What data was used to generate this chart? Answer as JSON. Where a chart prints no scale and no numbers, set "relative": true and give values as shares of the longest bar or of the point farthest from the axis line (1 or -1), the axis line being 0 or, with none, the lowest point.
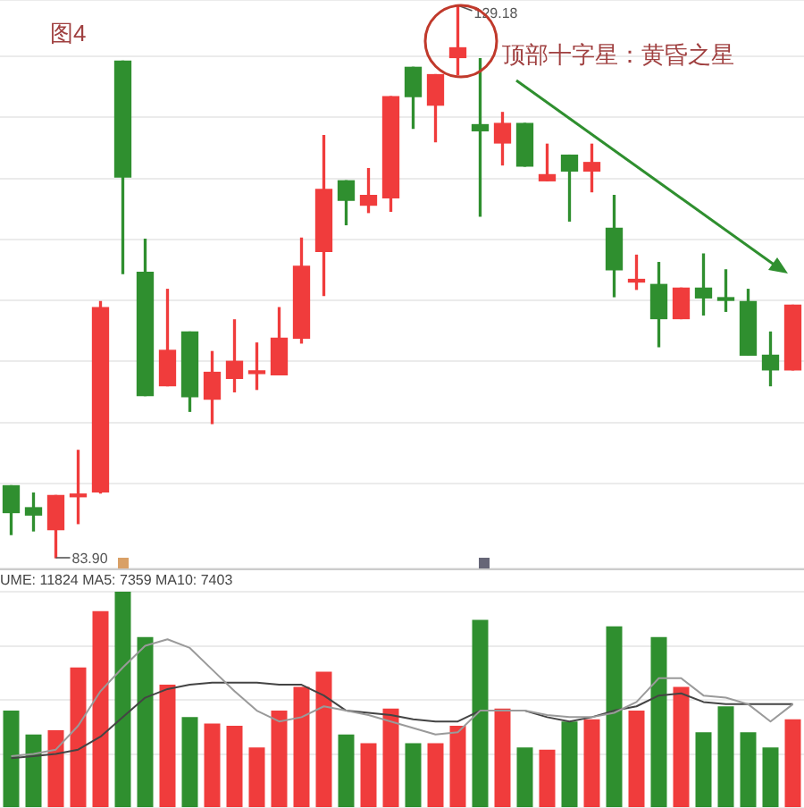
{
  "chart_data": [
    {
      "type": "candlestick",
      "title": "图4",
      "annotations": [
        "顶部十字星：黄昏之星",
        "129.18",
        "83.90"
      ],
      "categories": [
        null,
        null,
        null,
        null,
        null,
        null,
        null,
        null,
        null,
        null,
        null,
        null,
        null,
        null,
        null,
        null,
        null,
        null,
        null,
        null,
        null,
        null,
        null,
        null,
        null,
        null,
        null,
        null,
        null,
        null,
        null,
        null,
        null,
        null,
        null,
        null
      ],
      "ohlc": [
        [
          89.8,
          89.8,
          85.8,
          87.6
        ],
        [
          88.0,
          89.2,
          86.1,
          87.4
        ],
        [
          86.2,
          89.0,
          83.9,
          89.0
        ],
        [
          88.9,
          92.7,
          86.7,
          89.0
        ],
        [
          89.3,
          104.9,
          89.2,
          104.4
        ],
        [
          124.6,
          124.6,
          107.2,
          115.1
        ],
        [
          107.3,
          110.0,
          97.2,
          97.2
        ],
        [
          98.0,
          105.9,
          98.0,
          100.9
        ],
        [
          102.4,
          102.4,
          95.9,
          97.1
        ],
        [
          96.9,
          100.8,
          94.9,
          99.1
        ],
        [
          98.6,
          103.4,
          97.5,
          100.0
        ],
        [
          99.0,
          101.5,
          97.7,
          99.1
        ],
        [
          98.9,
          104.4,
          98.9,
          101.9
        ],
        [
          101.9,
          110.1,
          101.5,
          107.8
        ],
        [
          109.0,
          118.5,
          105.4,
          114.1
        ],
        [
          114.8,
          114.8,
          111.2,
          113.2
        ],
        [
          112.8,
          115.8,
          112.2,
          113.6
        ],
        [
          113.4,
          121.7,
          112.3,
          121.7
        ],
        [
          124.1,
          124.1,
          119.1,
          121.7
        ],
        [
          121.0,
          123.5,
          118.0,
          123.5
        ],
        [
          124.9,
          129.18,
          123.5,
          125.7
        ],
        [
          119.4,
          124.8,
          111.9,
          118.9
        ],
        [
          117.9,
          120.4,
          116.1,
          119.5
        ],
        [
          119.5,
          119.5,
          116.0,
          116.0
        ],
        [
          114.8,
          117.8,
          114.8,
          115.3
        ],
        [
          116.9,
          116.9,
          111.5,
          115.6
        ],
        [
          115.6,
          117.8,
          113.9,
          116.3
        ],
        [
          110.9,
          113.6,
          105.3,
          107.5
        ],
        [
          106.5,
          108.7,
          105.9,
          106.6
        ],
        [
          106.3,
          108.1,
          101.2,
          103.5
        ],
        [
          103.5,
          106.0,
          103.5,
          106.0
        ],
        [
          106.0,
          108.8,
          103.8,
          105.2
        ],
        [
          105.1,
          107.5,
          104.1,
          105.0
        ],
        [
          104.9,
          105.9,
          100.5,
          100.5
        ],
        [
          100.5,
          102.4,
          98.0,
          99.3
        ],
        [
          99.3,
          104.6,
          99.3,
          104.6
        ]
      ],
      "colors": [
        "#2f8f2f",
        "#2f8f2f",
        "#f03c3c",
        "#f03c3c",
        "#f03c3c",
        "#2f8f2f",
        "#2f8f2f",
        "#f03c3c",
        "#2f8f2f",
        "#f03c3c",
        "#f03c3c",
        "#f03c3c",
        "#f03c3c",
        "#f03c3c",
        "#f03c3c",
        "#2f8f2f",
        "#f03c3c",
        "#f03c3c",
        "#2f8f2f",
        "#f03c3c",
        "#f03c3c",
        "#2f8f2f",
        "#f03c3c",
        "#2f8f2f",
        "#f03c3c",
        "#2f8f2f",
        "#f03c3c",
        "#2f8f2f",
        "#f03c3c",
        "#2f8f2f",
        "#f03c3c",
        "#2f8f2f",
        "#2f8f2f",
        "#2f8f2f",
        "#2f8f2f",
        "#f03c3c"
      ],
      "grid": "y",
      "tick_labels": false
    },
    {
      "type": "bar",
      "title": "UME: 11824 MA5: 7359 MA10: 7403",
      "relative": true,
      "categories": [
        null,
        null,
        null,
        null,
        null,
        null,
        null,
        null,
        null,
        null,
        null,
        null,
        null,
        null,
        null,
        null,
        null,
        null,
        null,
        null,
        null,
        null,
        null,
        null,
        null,
        null,
        null,
        null,
        null,
        null,
        null,
        null,
        null,
        null,
        null,
        null
      ],
      "series": [
        {
          "type": "bar",
          "colors": [
            "#2f8f2f",
            "#2f8f2f",
            "#f03c3c",
            "#f03c3c",
            "#f03c3c",
            "#2f8f2f",
            "#2f8f2f",
            "#f03c3c",
            "#2f8f2f",
            "#f03c3c",
            "#f03c3c",
            "#f03c3c",
            "#f03c3c",
            "#f03c3c",
            "#f03c3c",
            "#2f8f2f",
            "#f03c3c",
            "#f03c3c",
            "#2f8f2f",
            "#f03c3c",
            "#f03c3c",
            "#2f8f2f",
            "#f03c3c",
            "#2f8f2f",
            "#f03c3c",
            "#2f8f2f",
            "#f03c3c",
            "#2f8f2f",
            "#f03c3c",
            "#2f8f2f",
            "#f03c3c",
            "#2f8f2f",
            "#2f8f2f",
            "#2f8f2f",
            "#2f8f2f",
            "#f03c3c"
          ],
          "values": [
            0.45,
            0.34,
            0.36,
            0.65,
            0.91,
            1,
            0.79,
            0.57,
            0.42,
            0.39,
            0.38,
            0.28,
            0.45,
            0.56,
            0.63,
            0.34,
            0.3,
            0.46,
            0.3,
            0.3,
            0.38,
            0.87,
            0.46,
            0.28,
            0.27,
            0.4,
            0.41,
            0.84,
            0.45,
            0.79,
            0.56,
            0.35,
            0.47,
            0.35,
            0.28,
            0.41
          ]
        },
        {
          "type": "line",
          "color": "#9a9a9a",
          "values": [
            0.24,
            0.25,
            0.27,
            0.38,
            0.54,
            0.65,
            0.75,
            0.78,
            0.74,
            0.64,
            0.54,
            0.45,
            0.4,
            0.42,
            0.47,
            0.45,
            0.43,
            0.4,
            0.37,
            0.34,
            0.35,
            0.45,
            0.45,
            0.45,
            0.43,
            0.42,
            0.42,
            0.44,
            0.49,
            0.6,
            0.6,
            0.52,
            0.51,
            0.48,
            0.4,
            0.48
          ]
        },
        {
          "type": "line",
          "color": "#444444",
          "values": [
            0.23,
            0.24,
            0.25,
            0.27,
            0.33,
            0.42,
            0.51,
            0.55,
            0.57,
            0.58,
            0.58,
            0.58,
            0.57,
            0.57,
            0.52,
            0.45,
            0.44,
            0.43,
            0.41,
            0.4,
            0.4,
            0.45,
            0.45,
            0.45,
            0.42,
            0.4,
            0.42,
            0.45,
            0.47,
            0.52,
            0.53,
            0.49,
            0.48,
            0.48,
            0.48,
            0.48
          ]
        }
      ],
      "marker": "none",
      "line_style": "solid",
      "grid": "y",
      "tick_labels": false
    }
  ]
}
